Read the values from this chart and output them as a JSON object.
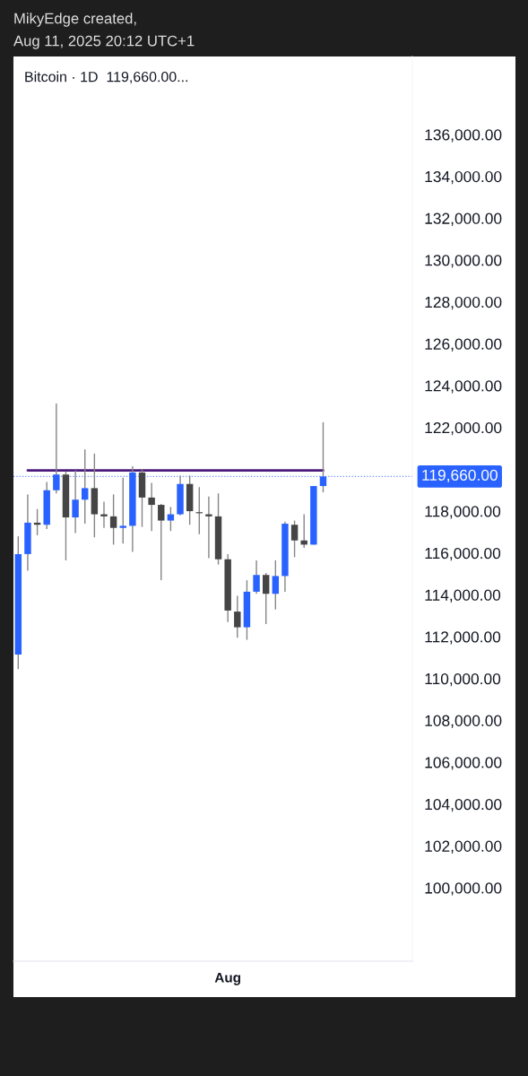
{
  "chart_data": {
    "type": "candlestick",
    "title": "Bitcoin · 1D  119,660.00...",
    "annotations": [
      "MikyEdge created,",
      "Aug 11, 2025 20:12 UTC+1"
    ],
    "categories": [
      null,
      null,
      null,
      null,
      null,
      null,
      null,
      null,
      null,
      null,
      null,
      null,
      null,
      null,
      null,
      null,
      null,
      null,
      null,
      null,
      null,
      null,
      "Aug",
      null,
      null,
      null,
      null,
      null,
      null,
      null,
      null,
      null,
      null
    ],
    "ohlc": [
      [
        111150,
        116800,
        110450,
        115950
      ],
      [
        115950,
        118800,
        115150,
        117450
      ],
      [
        117450,
        118100,
        116850,
        117350
      ],
      [
        117350,
        119400,
        117150,
        119000
      ],
      [
        119000,
        123150,
        118850,
        119750
      ],
      [
        119750,
        119900,
        115650,
        117700
      ],
      [
        117700,
        119950,
        116950,
        118550
      ],
      [
        118550,
        120950,
        117400,
        119100
      ],
      [
        119100,
        120750,
        116750,
        117850
      ],
      [
        117850,
        118450,
        117200,
        117750
      ],
      [
        117750,
        118800,
        116400,
        117200
      ],
      [
        117200,
        119600,
        116450,
        117300
      ],
      [
        117300,
        120150,
        116050,
        119850
      ],
      [
        119850,
        120000,
        117250,
        118650
      ],
      [
        118650,
        119350,
        117050,
        118300
      ],
      [
        118300,
        118350,
        114700,
        117550
      ],
      [
        117550,
        118200,
        117050,
        117850
      ],
      [
        117850,
        119700,
        117800,
        119300
      ],
      [
        119300,
        119700,
        117350,
        118000
      ],
      [
        117950,
        119150,
        116900,
        117900
      ],
      [
        117850,
        118700,
        115750,
        117750
      ],
      [
        117750,
        118850,
        115450,
        115700
      ],
      [
        115700,
        115950,
        112700,
        113250
      ],
      [
        113200,
        113950,
        111950,
        112450
      ],
      [
        112450,
        114700,
        111850,
        114150
      ],
      [
        114150,
        115650,
        114050,
        114950
      ],
      [
        114950,
        115050,
        112600,
        114050
      ],
      [
        114050,
        115650,
        113300,
        114900
      ],
      [
        114900,
        117500,
        114150,
        117400
      ],
      [
        117350,
        117550,
        115800,
        116600
      ],
      [
        116600,
        117850,
        116250,
        116400
      ],
      [
        116400,
        119200,
        116400,
        119200
      ],
      [
        119200,
        122250,
        118900,
        119660
      ]
    ],
    "colors": [
      "#2962ff",
      "#2962ff",
      "#454545",
      "#2962ff",
      "#2962ff",
      "#454545",
      "#2962ff",
      "#2962ff",
      "#454545",
      "#454545",
      "#454545",
      "#2962ff",
      "#2962ff",
      "#454545",
      "#454545",
      "#454545",
      "#2962ff",
      "#2962ff",
      "#454545",
      "#454545",
      "#454545",
      "#454545",
      "#454545",
      "#454545",
      "#2962ff",
      "#2962ff",
      "#454545",
      "#2962ff",
      "#2962ff",
      "#454545",
      "#454545",
      "#2962ff",
      "#2962ff"
    ],
    "series": [
      {
        "type": "line",
        "values": [
          null,
          119950,
          119950,
          119950,
          119950,
          119950,
          119950,
          119950,
          119950,
          119950,
          119950,
          119950,
          119950,
          119950,
          119950,
          119950,
          119950,
          119950,
          119950,
          119950,
          119950,
          119950,
          119950,
          119950,
          119950,
          119950,
          119950,
          119950,
          119950,
          119950,
          119950,
          119950,
          119950
        ],
        "color": "#4b1c7d"
      }
    ],
    "ref_lines": [
      {
        "axis": "y",
        "value": 119660,
        "label": "119,660.00",
        "color": "#2962ff",
        "line_style": "dotted"
      }
    ],
    "ylim": [
      96490,
      139730
    ],
    "yticks": [
      {
        "value": 100000,
        "label": "100,000.00"
      },
      {
        "value": 102000,
        "label": "102,000.00"
      },
      {
        "value": 104000,
        "label": "104,000.00"
      },
      {
        "value": 106000,
        "label": "106,000.00"
      },
      {
        "value": 108000,
        "label": "108,000.00"
      },
      {
        "value": 110000,
        "label": "110,000.00"
      },
      {
        "value": 112000,
        "label": "112,000.00"
      },
      {
        "value": 114000,
        "label": "114,000.00"
      },
      {
        "value": 116000,
        "label": "116,000.00"
      },
      {
        "value": 118000,
        "label": "118,000.00"
      },
      {
        "value": 122000,
        "label": "122,000.00"
      },
      {
        "value": 124000,
        "label": "124,000.00"
      },
      {
        "value": 126000,
        "label": "126,000.00"
      },
      {
        "value": 128000,
        "label": "128,000.00"
      },
      {
        "value": 130000,
        "label": "130,000.00"
      },
      {
        "value": 132000,
        "label": "132,000.00"
      },
      {
        "value": 134000,
        "label": "134,000.00"
      },
      {
        "value": 136000,
        "label": "136,000.00"
      }
    ],
    "grid": false,
    "legend": false
  }
}
